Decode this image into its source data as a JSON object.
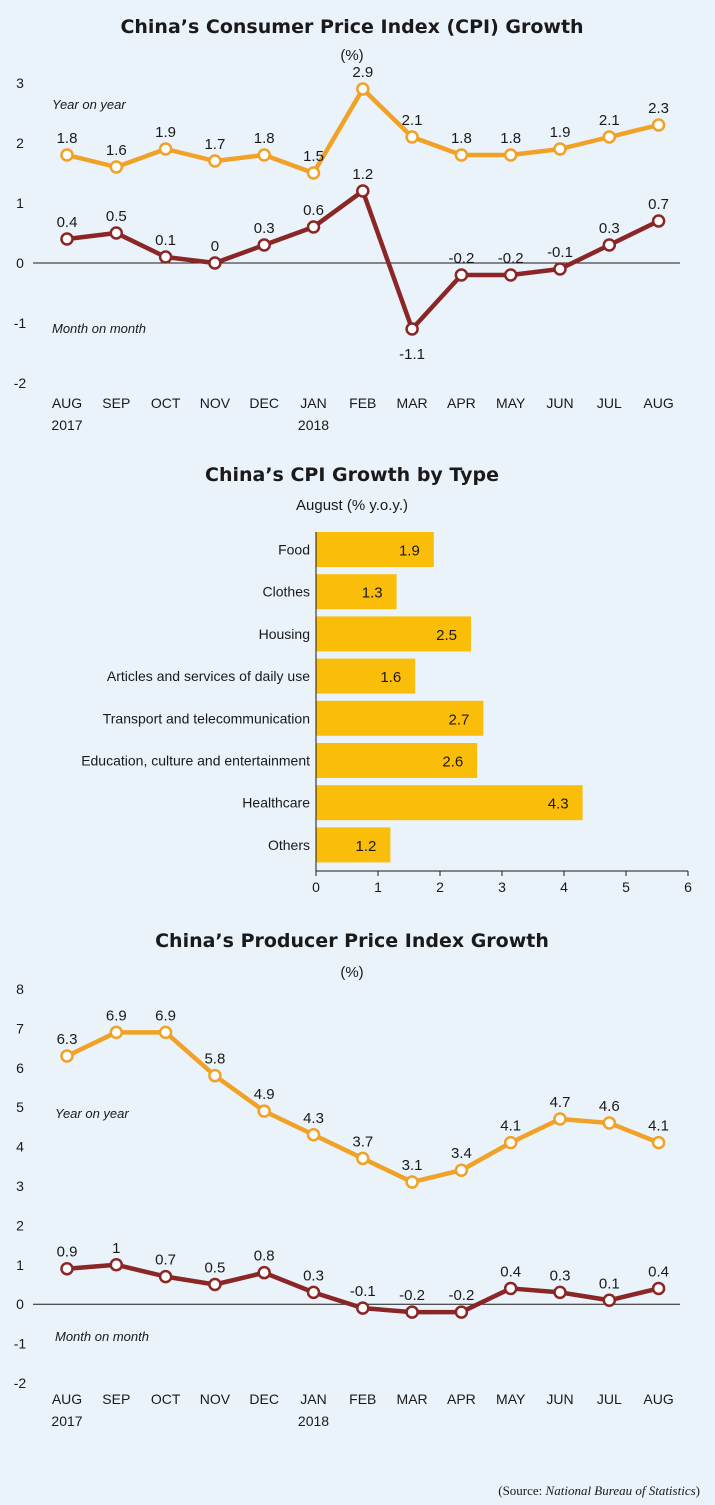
{
  "colors": {
    "yoy": "#f0a126",
    "mom": "#8b2626",
    "bar": "#f9bd0a",
    "background": "#eaf2fa"
  },
  "chart_data": [
    {
      "type": "line",
      "title": "China’s Consumer Price Index (CPI) Growth",
      "subtitle": "(%)",
      "ylim": [
        -2,
        3
      ],
      "yticks": [
        -2,
        -1,
        0,
        1,
        2,
        3
      ],
      "categories": [
        "AUG",
        "SEP",
        "OCT",
        "NOV",
        "DEC",
        "JAN",
        "FEB",
        "MAR",
        "APR",
        "MAY",
        "JUN",
        "JUL",
        "AUG"
      ],
      "year_labels": [
        "2017",
        "",
        "",
        "",
        "",
        "2018",
        "",
        "",
        "",
        "",
        "",
        "",
        ""
      ],
      "series": [
        {
          "name": "Year on year",
          "values": [
            1.8,
            1.6,
            1.9,
            1.7,
            1.8,
            1.5,
            2.9,
            2.1,
            1.8,
            1.8,
            1.9,
            2.1,
            2.3
          ]
        },
        {
          "name": "Month on month",
          "values": [
            0.4,
            0.5,
            0.1,
            0,
            0.3,
            0.6,
            1.2,
            -1.1,
            -0.2,
            -0.2,
            -0.1,
            0.3,
            0.7
          ]
        }
      ]
    },
    {
      "type": "bar",
      "title": "China’s CPI Growth by Type",
      "subtitle": "August (% y.o.y.)",
      "xlim": [
        0,
        6
      ],
      "xticks": [
        0,
        1,
        2,
        3,
        4,
        5,
        6
      ],
      "categories": [
        "Food",
        "Clothes",
        "Housing",
        "Articles and services of daily use",
        "Transport and telecommunication",
        "Education, culture and entertainment",
        "Healthcare",
        "Others"
      ],
      "values": [
        1.9,
        1.3,
        2.5,
        1.6,
        2.7,
        2.6,
        4.3,
        1.2
      ]
    },
    {
      "type": "line",
      "title": "China’s Producer Price Index Growth",
      "subtitle": "(%)",
      "ylim": [
        -2,
        8
      ],
      "yticks": [
        -2,
        -1,
        0,
        1,
        2,
        3,
        4,
        5,
        6,
        7,
        8
      ],
      "categories": [
        "AUG",
        "SEP",
        "OCT",
        "NOV",
        "DEC",
        "JAN",
        "FEB",
        "MAR",
        "APR",
        "MAY",
        "JUN",
        "JUL",
        "AUG"
      ],
      "year_labels": [
        "2017",
        "",
        "",
        "",
        "",
        "2018",
        "",
        "",
        "",
        "",
        "",
        "",
        ""
      ],
      "series": [
        {
          "name": "Year on year",
          "values": [
            6.3,
            6.9,
            6.9,
            5.8,
            4.9,
            4.3,
            3.7,
            3.1,
            3.4,
            4.1,
            4.7,
            4.6,
            4.1
          ]
        },
        {
          "name": "Month on month",
          "values": [
            0.9,
            1.0,
            0.7,
            0.5,
            0.8,
            0.3,
            -0.1,
            -0.2,
            -0.2,
            0.4,
            0.3,
            0.1,
            0.4
          ]
        }
      ]
    }
  ],
  "source": {
    "open": "(Source: ",
    "name": "National Bureau of Statistics",
    "close": ")"
  }
}
